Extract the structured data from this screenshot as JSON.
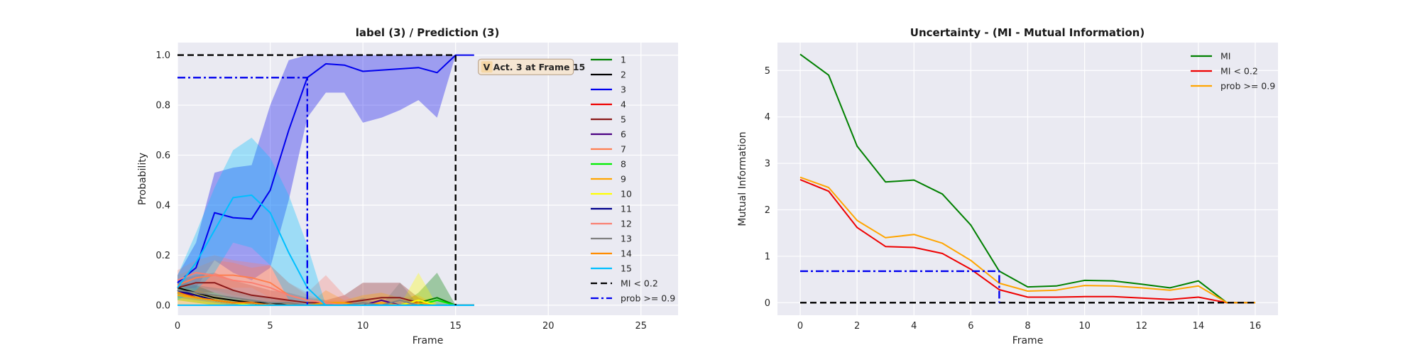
{
  "chart_data": [
    {
      "type": "line",
      "title": "label (3) / Prediction (3)",
      "xlabel": "Frame",
      "ylabel": "Probability",
      "xlim": [
        0,
        27
      ],
      "ylim": [
        -0.04,
        1.05
      ],
      "xticks": [
        0,
        5,
        10,
        15,
        20,
        25
      ],
      "yticks": [
        0.0,
        0.2,
        0.4,
        0.6,
        0.8,
        1.0
      ],
      "ytick_labels": [
        "0.0",
        "0.2",
        "0.4",
        "0.6",
        "0.8",
        "1.0"
      ],
      "grid": true,
      "legend_position": "right",
      "annotation": {
        "text": "V  Act. 3 at Frame 15",
        "x": 18.6,
        "y": 0.95
      },
      "x": [
        0,
        1,
        2,
        3,
        4,
        5,
        6,
        7,
        8,
        9,
        10,
        11,
        12,
        13,
        14,
        15,
        16
      ],
      "series": [
        {
          "name": "1",
          "color": "#008000",
          "values": [
            0.06,
            0.04,
            0.02,
            0.01,
            0.01,
            0.0,
            0.0,
            0.0,
            0.0,
            0.0,
            0.0,
            0.0,
            0.0,
            0.01,
            0.03,
            0.0,
            0.0
          ],
          "upper": [
            0.1,
            0.08,
            0.05,
            0.03,
            0.02,
            0.01,
            0.01,
            0.0,
            0.0,
            0.0,
            0.0,
            0.0,
            0.0,
            0.05,
            0.13,
            0.0,
            0.0
          ],
          "lower": [
            0.02,
            0.01,
            0.0,
            0.0,
            0.0,
            0.0,
            0.0,
            0.0,
            0.0,
            0.0,
            0.0,
            0.0,
            0.0,
            0.0,
            0.0,
            0.0,
            0.0
          ]
        },
        {
          "name": "2",
          "color": "#000000",
          "values": [
            0.07,
            0.05,
            0.03,
            0.02,
            0.01,
            0.01,
            0.0,
            0.0,
            0.0,
            0.0,
            0.0,
            0.0,
            0.0,
            0.0,
            0.0,
            0.0,
            0.0
          ]
        },
        {
          "name": "3",
          "color": "#0000ee",
          "values": [
            0.09,
            0.15,
            0.37,
            0.35,
            0.345,
            0.46,
            0.7,
            0.91,
            0.965,
            0.96,
            0.935,
            0.94,
            0.945,
            0.95,
            0.93,
            1.0,
            1.0
          ],
          "upper": [
            0.12,
            0.25,
            0.53,
            0.55,
            0.56,
            0.8,
            0.98,
            1.0,
            1.0,
            1.0,
            1.0,
            1.0,
            1.0,
            1.0,
            1.0,
            1.0,
            1.0
          ],
          "lower": [
            0.06,
            0.07,
            0.18,
            0.13,
            0.1,
            0.15,
            0.42,
            0.75,
            0.85,
            0.85,
            0.73,
            0.75,
            0.78,
            0.82,
            0.75,
            1.0,
            1.0
          ]
        },
        {
          "name": "4",
          "color": "#ee0000",
          "values": [
            0.05,
            0.04,
            0.02,
            0.01,
            0.01,
            0.0,
            0.0,
            0.0,
            0.0,
            0.0,
            0.0,
            0.0,
            0.0,
            0.0,
            0.0,
            0.0,
            0.0
          ]
        },
        {
          "name": "5",
          "color": "#8b1a1a",
          "values": [
            0.07,
            0.09,
            0.09,
            0.06,
            0.04,
            0.03,
            0.02,
            0.01,
            0.01,
            0.01,
            0.02,
            0.03,
            0.03,
            0.01,
            0.0,
            0.0,
            0.0
          ],
          "upper": [
            0.1,
            0.12,
            0.13,
            0.1,
            0.08,
            0.06,
            0.05,
            0.03,
            0.02,
            0.04,
            0.09,
            0.09,
            0.09,
            0.03,
            0.0,
            0.0,
            0.0
          ],
          "lower": [
            0.04,
            0.05,
            0.05,
            0.03,
            0.01,
            0.0,
            0.0,
            0.0,
            0.0,
            0.0,
            0.0,
            0.0,
            0.0,
            0.0,
            0.0,
            0.0,
            0.0
          ]
        },
        {
          "name": "6",
          "color": "#4b0082",
          "values": [
            0.06,
            0.03,
            0.02,
            0.01,
            0.01,
            0.0,
            0.0,
            0.0,
            0.0,
            0.0,
            0.0,
            0.02,
            0.0,
            0.0,
            0.0,
            0.0,
            0.0
          ]
        },
        {
          "name": "7",
          "color": "#ff7f50",
          "values": [
            0.08,
            0.11,
            0.12,
            0.12,
            0.11,
            0.09,
            0.04,
            0.02,
            0.01,
            0.01,
            0.0,
            0.0,
            0.0,
            0.0,
            0.0,
            0.0,
            0.0
          ],
          "upper": [
            0.12,
            0.15,
            0.18,
            0.17,
            0.15,
            0.16,
            0.09,
            0.04,
            0.02,
            0.02,
            0.0,
            0.0,
            0.0,
            0.0,
            0.0,
            0.0,
            0.0
          ],
          "lower": [
            0.04,
            0.07,
            0.06,
            0.07,
            0.07,
            0.03,
            0.0,
            0.0,
            0.0,
            0.0,
            0.0,
            0.0,
            0.0,
            0.0,
            0.0,
            0.0,
            0.0
          ]
        },
        {
          "name": "8",
          "color": "#00ee00",
          "values": [
            0.05,
            0.03,
            0.02,
            0.01,
            0.0,
            0.0,
            0.0,
            0.0,
            0.0,
            0.0,
            0.0,
            0.0,
            0.0,
            0.0,
            0.02,
            0.0,
            0.0
          ]
        },
        {
          "name": "9",
          "color": "#ffa500",
          "values": [
            0.04,
            0.03,
            0.02,
            0.01,
            0.01,
            0.0,
            0.0,
            0.0,
            0.01,
            0.01,
            0.0,
            0.01,
            0.0,
            0.01,
            0.0,
            0.0,
            0.0
          ],
          "upper": [
            0.08,
            0.06,
            0.04,
            0.02,
            0.02,
            0.01,
            0.01,
            0.0,
            0.06,
            0.02,
            0.04,
            0.05,
            0.03,
            0.04,
            0.0,
            0.0,
            0.0
          ],
          "lower": [
            0.0,
            0.0,
            0.0,
            0.0,
            0.0,
            0.0,
            0.0,
            0.0,
            0.0,
            0.0,
            0.0,
            0.0,
            0.0,
            0.0,
            0.0,
            0.0,
            0.0
          ]
        },
        {
          "name": "10",
          "color": "#ffff00",
          "values": [
            0.05,
            0.03,
            0.02,
            0.01,
            0.0,
            0.0,
            0.0,
            0.0,
            0.0,
            0.0,
            0.0,
            0.0,
            0.0,
            0.02,
            0.0,
            0.0,
            0.0
          ],
          "upper": [
            0.08,
            0.05,
            0.03,
            0.02,
            0.0,
            0.0,
            0.0,
            0.0,
            0.0,
            0.0,
            0.0,
            0.0,
            0.0,
            0.13,
            0.0,
            0.0,
            0.0
          ],
          "lower": [
            0.02,
            0.01,
            0.0,
            0.0,
            0.0,
            0.0,
            0.0,
            0.0,
            0.0,
            0.0,
            0.0,
            0.0,
            0.0,
            0.0,
            0.0,
            0.0,
            0.0
          ]
        },
        {
          "name": "11",
          "color": "#00008b",
          "values": [
            0.06,
            0.04,
            0.02,
            0.01,
            0.01,
            0.0,
            0.0,
            0.0,
            0.0,
            0.0,
            0.0,
            0.0,
            0.0,
            0.0,
            0.0,
            0.0,
            0.0
          ]
        },
        {
          "name": "12",
          "color": "#fa8072",
          "values": [
            0.1,
            0.13,
            0.12,
            0.1,
            0.09,
            0.07,
            0.04,
            0.02,
            0.01,
            0.0,
            0.0,
            0.0,
            0.0,
            0.0,
            0.0,
            0.0,
            0.0
          ],
          "upper": [
            0.14,
            0.18,
            0.2,
            0.18,
            0.17,
            0.16,
            0.09,
            0.05,
            0.12,
            0.04,
            0.0,
            0.0,
            0.0,
            0.0,
            0.0,
            0.0,
            0.0
          ],
          "lower": [
            0.06,
            0.08,
            0.06,
            0.04,
            0.03,
            0.01,
            0.0,
            0.0,
            0.0,
            0.0,
            0.0,
            0.0,
            0.0,
            0.0,
            0.0,
            0.0,
            0.0
          ]
        },
        {
          "name": "13",
          "color": "#808080",
          "values": [
            0.06,
            0.05,
            0.04,
            0.03,
            0.02,
            0.01,
            0.01,
            0.0,
            0.0,
            0.0,
            0.01,
            0.0,
            0.02,
            0.0,
            0.0,
            0.0,
            0.0
          ],
          "upper": [
            0.09,
            0.08,
            0.07,
            0.06,
            0.04,
            0.03,
            0.02,
            0.0,
            0.0,
            0.0,
            0.03,
            0.0,
            0.09,
            0.0,
            0.0,
            0.0,
            0.0
          ],
          "lower": [
            0.03,
            0.02,
            0.01,
            0.0,
            0.0,
            0.0,
            0.0,
            0.0,
            0.0,
            0.0,
            0.0,
            0.0,
            0.0,
            0.0,
            0.0,
            0.0,
            0.0
          ]
        },
        {
          "name": "14",
          "color": "#ff8c00",
          "values": [
            0.05,
            0.03,
            0.02,
            0.01,
            0.01,
            0.0,
            0.0,
            0.0,
            0.0,
            0.0,
            0.0,
            0.0,
            0.0,
            0.0,
            0.0,
            0.0,
            0.0
          ]
        },
        {
          "name": "15",
          "color": "#00bfff",
          "values": [
            0.07,
            0.17,
            0.3,
            0.43,
            0.44,
            0.37,
            0.21,
            0.07,
            0.0,
            0.0,
            0.0,
            0.0,
            0.0,
            0.0,
            0.0,
            0.0,
            0.0
          ],
          "upper": [
            0.12,
            0.29,
            0.47,
            0.62,
            0.67,
            0.59,
            0.44,
            0.24,
            0.0,
            0.0,
            0.0,
            0.0,
            0.0,
            0.0,
            0.0,
            0.0,
            0.0
          ],
          "lower": [
            0.02,
            0.06,
            0.13,
            0.25,
            0.23,
            0.16,
            0.02,
            0.0,
            0.0,
            0.0,
            0.0,
            0.0,
            0.0,
            0.0,
            0.0,
            0.0,
            0.0
          ]
        }
      ],
      "threshold_lines": [
        {
          "name": "MI < 0.2",
          "color": "#000000",
          "style": "dashed",
          "x": [
            0,
            15,
            15
          ],
          "y": [
            1.0,
            1.0,
            0.0
          ]
        },
        {
          "name": "prob >= 0.9",
          "color": "#0000ee",
          "style": "dashdot",
          "x": [
            0,
            7,
            7
          ],
          "y": [
            0.91,
            0.91,
            0.0
          ]
        }
      ],
      "baseline": {
        "color": "#00bfff",
        "x": [
          0,
          16
        ],
        "y": [
          0.0,
          0.0
        ]
      }
    },
    {
      "type": "line",
      "title": "Uncertainty - (MI - Mutual Information)",
      "xlabel": "Frame",
      "ylabel": "Mutual Information",
      "xlim": [
        -0.8,
        16.8
      ],
      "ylim": [
        -0.27,
        5.6
      ],
      "xticks": [
        0,
        2,
        4,
        6,
        8,
        10,
        12,
        14,
        16
      ],
      "yticks": [
        0,
        1,
        2,
        3,
        4,
        5
      ],
      "grid": true,
      "legend_position": "top-right",
      "x": [
        0,
        1,
        2,
        3,
        4,
        5,
        6,
        7,
        8,
        9,
        10,
        11,
        12,
        13,
        14,
        15,
        16
      ],
      "series": [
        {
          "name": "MI",
          "color": "#008000",
          "values": [
            5.35,
            4.9,
            3.37,
            2.6,
            2.64,
            2.34,
            1.67,
            0.68,
            0.34,
            0.36,
            0.48,
            0.47,
            0.4,
            0.32,
            0.47,
            0.0,
            0.0
          ]
        },
        {
          "name": "MI < 0.2",
          "color": "#ee0000",
          "values": [
            2.65,
            2.4,
            1.62,
            1.21,
            1.19,
            1.06,
            0.72,
            0.28,
            0.12,
            0.12,
            0.13,
            0.13,
            0.1,
            0.07,
            0.12,
            0.0,
            0.0
          ]
        },
        {
          "name": "prob >= 0.9",
          "color": "#ffa500",
          "values": [
            2.7,
            2.48,
            1.77,
            1.4,
            1.47,
            1.28,
            0.91,
            0.42,
            0.25,
            0.27,
            0.37,
            0.36,
            0.32,
            0.27,
            0.36,
            0.0,
            0.0
          ]
        }
      ],
      "threshold_lines": [
        {
          "color": "#000000",
          "style": "dashed",
          "x": [
            0,
            16
          ],
          "y": [
            0.0,
            0.0
          ]
        },
        {
          "color": "#0000ee",
          "style": "dashdot",
          "x": [
            0,
            7,
            7
          ],
          "y": [
            0.68,
            0.68,
            0.0
          ]
        }
      ]
    }
  ]
}
